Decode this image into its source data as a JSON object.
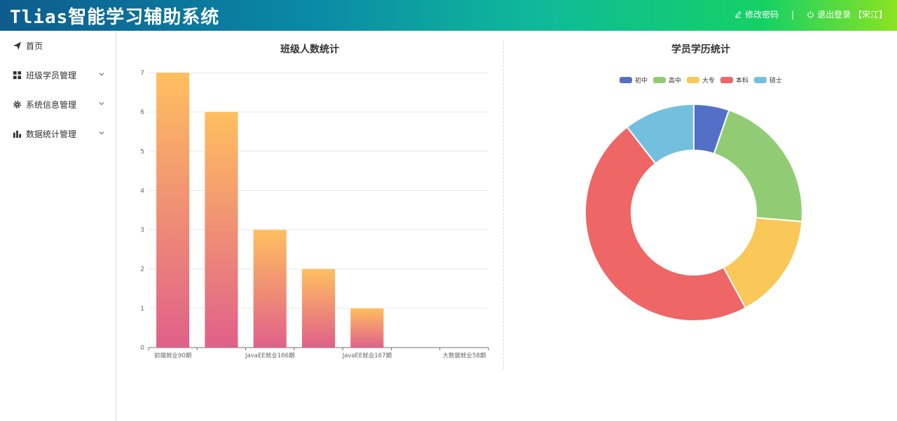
{
  "header": {
    "title": "Tlias智能学习辅助系统",
    "change_password": "修改密码",
    "separator": "|",
    "logout": "退出登录 【宋江】"
  },
  "sidebar": {
    "items": [
      {
        "label": "首页",
        "icon": "paper-plane-icon",
        "expandable": false
      },
      {
        "label": "班级学员管理",
        "icon": "grid-icon",
        "expandable": true
      },
      {
        "label": "系统信息管理",
        "icon": "gear-icon",
        "expandable": true
      },
      {
        "label": "数据统计管理",
        "icon": "bar-chart-icon",
        "expandable": true
      }
    ]
  },
  "chart_data": [
    {
      "type": "bar",
      "title": "班级人数统计",
      "categories": [
        "前端就业90期",
        "",
        "JavaEE就业166期",
        "",
        "JavaEE就业167期",
        "",
        "大数据就业58期"
      ],
      "values": [
        7,
        6,
        3,
        2,
        1,
        0,
        0
      ],
      "ylim": [
        0,
        7
      ],
      "yticks": [
        0,
        1,
        2,
        3,
        4,
        5,
        6,
        7
      ],
      "grid": true,
      "bar_gradient": [
        "#ffbf5f",
        "#e0608a"
      ]
    },
    {
      "type": "pie",
      "title": "学员学历统计",
      "labels": [
        "初中",
        "高中",
        "大专",
        "本科",
        "硕士"
      ],
      "values": [
        1,
        4,
        3,
        9,
        2
      ],
      "colors": [
        "#5470c6",
        "#91cc75",
        "#fac858",
        "#ee6666",
        "#73c0de"
      ],
      "legend": "top-center",
      "donut": true
    }
  ]
}
